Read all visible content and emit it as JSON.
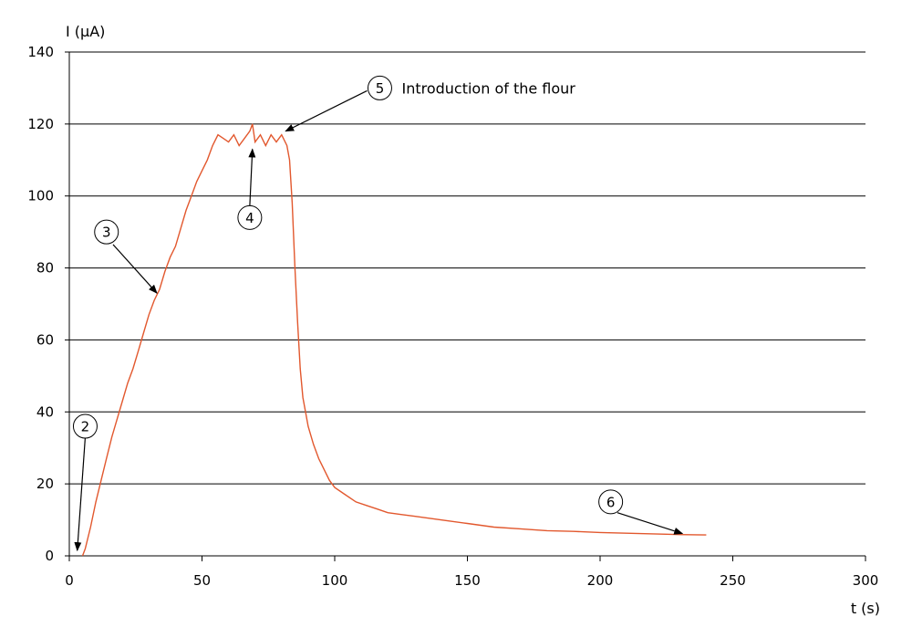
{
  "chart_data": {
    "type": "line",
    "title": "",
    "xlabel": "t (s)",
    "ylabel": "I (µA)",
    "xlim": [
      0,
      300
    ],
    "ylim": [
      0,
      140
    ],
    "x_ticks": [
      0,
      50,
      100,
      150,
      200,
      250,
      300
    ],
    "y_ticks": [
      0,
      20,
      40,
      60,
      80,
      100,
      120,
      140
    ],
    "x_tick_labels": [
      "0",
      "50",
      "100",
      "150",
      "200",
      "250",
      "300"
    ],
    "y_tick_labels": [
      "0",
      "20",
      "40",
      "60",
      "80",
      "100",
      "120",
      "140"
    ],
    "grid": "horizontal",
    "line_color": "#e2582e",
    "series": [
      {
        "x": [
          5,
          6,
          8,
          10,
          12,
          14,
          16,
          18,
          20,
          22,
          24,
          26,
          28,
          30,
          32,
          34,
          36,
          38,
          40,
          42,
          44,
          46,
          48,
          50,
          52,
          54,
          56,
          58,
          60,
          62,
          64,
          66,
          68,
          69,
          70,
          72,
          74,
          76,
          78,
          80,
          82,
          83,
          84,
          85,
          86,
          87,
          88,
          89,
          90,
          92,
          94,
          96,
          98,
          100,
          104,
          108,
          112,
          116,
          120,
          125,
          130,
          140,
          150,
          160,
          170,
          180,
          190,
          200,
          210,
          220,
          230,
          240
        ],
        "y": [
          0,
          2,
          8,
          15,
          21,
          27,
          33,
          38,
          43,
          48,
          52,
          57,
          62,
          67,
          71,
          74,
          79,
          83,
          86,
          91,
          96,
          100,
          104,
          107,
          110,
          114,
          117,
          116,
          115,
          117,
          114,
          116,
          118,
          120,
          115,
          117,
          114,
          117,
          115,
          117,
          114,
          110,
          98,
          80,
          65,
          52,
          44,
          40,
          36,
          31,
          27,
          24,
          21,
          19,
          17,
          15,
          14,
          13,
          12,
          11.5,
          11,
          10,
          9,
          8,
          7.5,
          7,
          6.8,
          6.5,
          6.3,
          6.1,
          5.9,
          5.8
        ]
      }
    ],
    "annotations": [
      {
        "label": "2",
        "text": ""
      },
      {
        "label": "3",
        "text": ""
      },
      {
        "label": "4",
        "text": ""
      },
      {
        "label": "5",
        "text": "Introduction of the flour"
      },
      {
        "label": "6",
        "text": ""
      }
    ]
  }
}
